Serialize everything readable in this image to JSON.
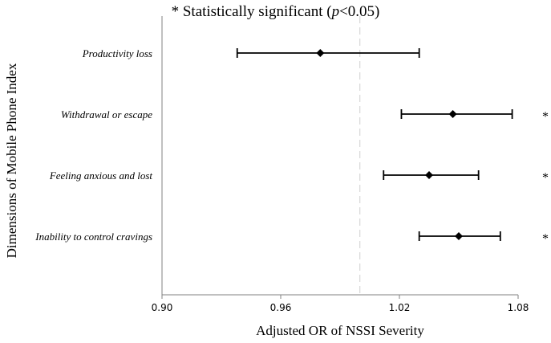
{
  "chart_data": {
    "type": "forest",
    "annotation": {
      "prefix": "* Statistically significant (",
      "p_symbol": "p",
      "suffix": "<0.05)"
    },
    "xlabel": "Adjusted OR of  NSSI Severity",
    "ylabel": "Dimensions of  Mobile Phone Index",
    "xlim": [
      0.9,
      1.08
    ],
    "xticks": [
      "0.90",
      "0.96",
      "1.02",
      "1.08"
    ],
    "reference_line": 1.0,
    "rows": [
      {
        "label": "Productivity loss",
        "or": 0.98,
        "lower": 0.938,
        "upper": 1.03,
        "significant": false,
        "marker": ""
      },
      {
        "label": "Withdrawal or escape",
        "or": 1.047,
        "lower": 1.021,
        "upper": 1.077,
        "significant": true,
        "marker": "*"
      },
      {
        "label": "Feeling anxious and lost",
        "or": 1.035,
        "lower": 1.012,
        "upper": 1.06,
        "significant": true,
        "marker": "*"
      },
      {
        "label": "Inability to control cravings",
        "or": 1.05,
        "lower": 1.03,
        "upper": 1.071,
        "significant": true,
        "marker": "*"
      }
    ],
    "colors": {
      "line": "#000000",
      "marker": "#000000",
      "reference": "#d9d9d9",
      "axis": "#808080"
    }
  }
}
